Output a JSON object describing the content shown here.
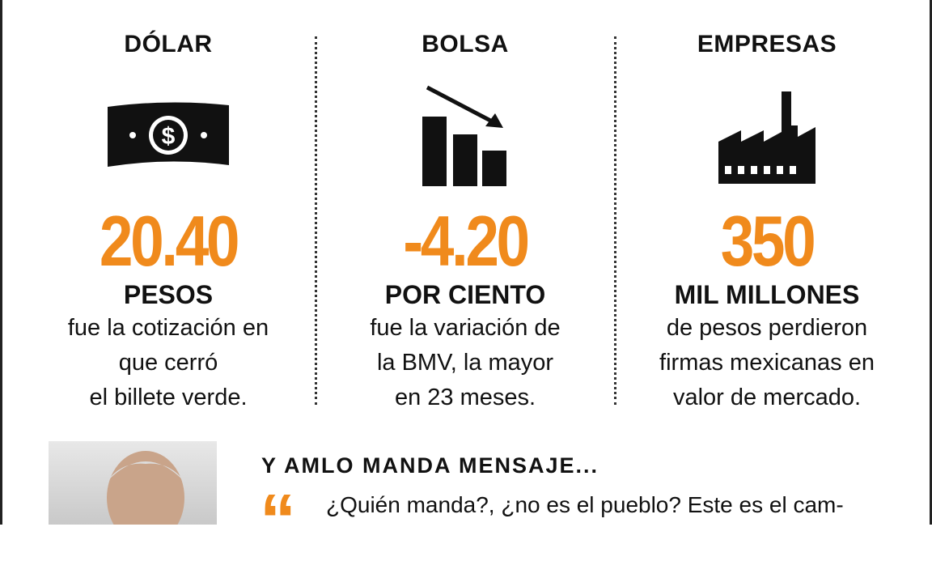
{
  "columns": [
    {
      "title": "DÓLAR",
      "figure": "20.40",
      "unit": "PESOS",
      "description": [
        "fue la cotización en",
        "que cerró",
        "el billete verde."
      ]
    },
    {
      "title": "BOLSA",
      "figure": "-4.20",
      "unit": "POR CIENTO",
      "description": [
        "fue la variación de",
        "la BMV, la mayor",
        "en 23 meses."
      ]
    },
    {
      "title": "EMPRESAS",
      "figure": "350",
      "unit": "MIL MILLONES",
      "description": [
        "de pesos perdieron",
        "firmas mexicanas en",
        "valor de mercado."
      ]
    }
  ],
  "message": {
    "heading": "Y AMLO MANDA MENSAJE...",
    "quote": "¿Quién manda?, ¿no es el pueblo? Este es el cam-"
  }
}
